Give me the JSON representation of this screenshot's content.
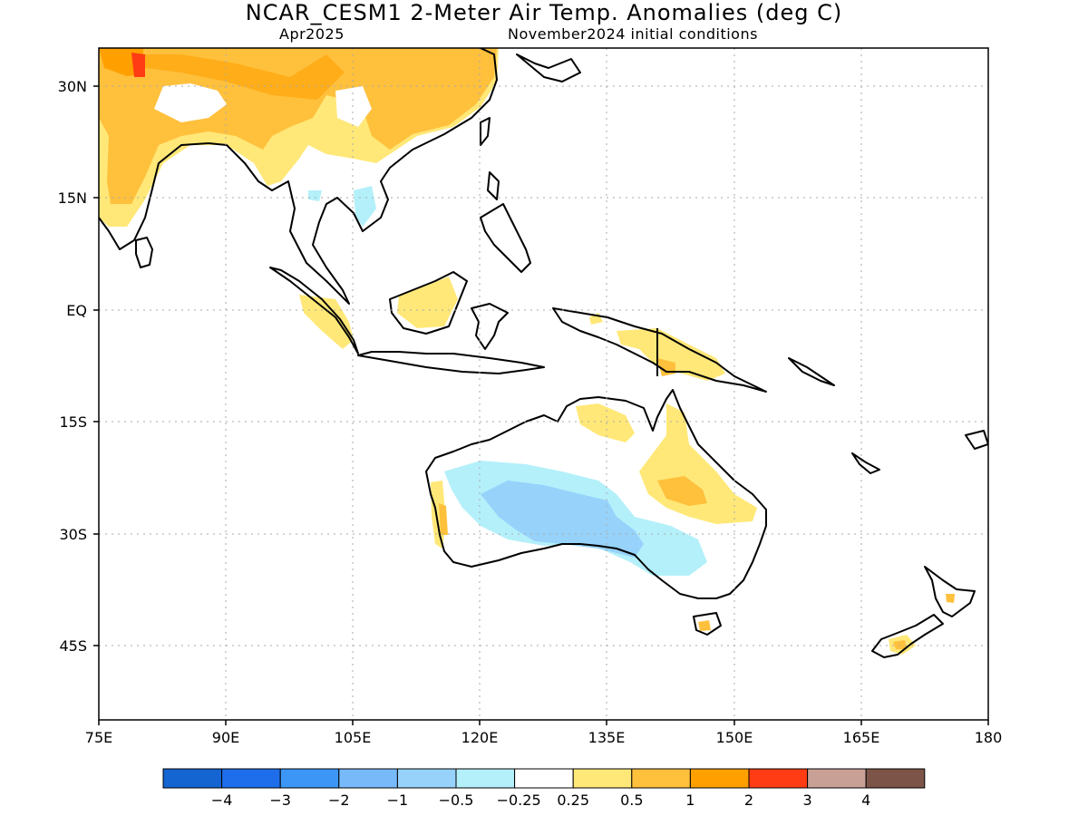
{
  "title": "NCAR_CESM1 2-Meter Air Temp. Anomalies (deg C)",
  "subtitle_left": "Apr2025",
  "subtitle_right": "November2024 initial conditions",
  "lat_labels": [
    "30N",
    "15N",
    "EQ",
    "15S",
    "30S",
    "45S"
  ],
  "lon_labels": [
    "75E",
    "90E",
    "105E",
    "120E",
    "135E",
    "150E",
    "165E",
    "180"
  ],
  "colorbar": {
    "colors": [
      "#1464d2",
      "#1e6eeb",
      "#3c96f5",
      "#78b9fa",
      "#96d2fa",
      "#b4f0fa",
      "#ffffff",
      "#ffe878",
      "#ffc03c",
      "#ffa000",
      "#ff3c14",
      "#c8a096",
      "#7d5548"
    ],
    "labels": [
      "−4",
      "−3",
      "−2",
      "−1",
      "−0.5",
      "−0.25",
      "0.25",
      "0.5",
      "1",
      "2",
      "3",
      "4"
    ]
  }
}
